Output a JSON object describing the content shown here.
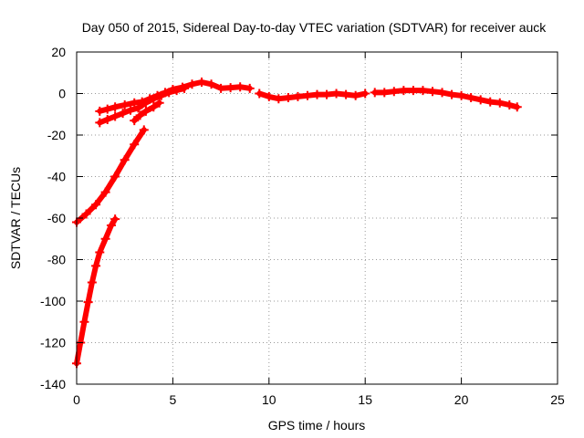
{
  "chart_data": {
    "type": "scatter",
    "title": "Day 050 of 2015, Sidereal Day-to-day VTEC variation (SDTVAR) for receiver auck",
    "xlabel": "GPS time / hours",
    "ylabel": "SDTVAR / TECUs",
    "xlim": [
      0,
      25
    ],
    "ylim": [
      -140,
      20
    ],
    "xticks": [
      0,
      5,
      10,
      15,
      20,
      25
    ],
    "yticks": [
      -140,
      -120,
      -100,
      -80,
      -60,
      -40,
      -20,
      0,
      20
    ],
    "grid": true,
    "legend": "none",
    "colors": {
      "series": "#ff0000",
      "grid": "#999999",
      "axis": "#000000"
    },
    "series": [
      {
        "name": "main-track",
        "points": [
          [
            1.2,
            -8.5
          ],
          [
            1.6,
            -7.5
          ],
          [
            2.0,
            -6.5
          ],
          [
            2.5,
            -5.5
          ],
          [
            3.0,
            -4.5
          ],
          [
            3.4,
            -4.0
          ],
          [
            3.8,
            -2.5
          ],
          [
            4.2,
            -1.0
          ],
          [
            4.6,
            0.5
          ],
          [
            5.0,
            2.0
          ],
          [
            5.5,
            3.0
          ],
          [
            6.0,
            4.5
          ],
          [
            6.5,
            5.5
          ],
          [
            7.0,
            4.5
          ],
          [
            7.5,
            2.5
          ],
          [
            8.0,
            2.8
          ],
          [
            8.5,
            3.2
          ],
          [
            9.0,
            2.5
          ]
        ]
      },
      {
        "name": "main-track-lower",
        "points": [
          [
            1.2,
            -14.0
          ],
          [
            1.6,
            -12.5
          ],
          [
            2.0,
            -11.0
          ],
          [
            2.4,
            -9.5
          ],
          [
            2.8,
            -8.0
          ],
          [
            3.2,
            -7.0
          ],
          [
            3.6,
            -4.5
          ],
          [
            4.0,
            -2.5
          ],
          [
            4.4,
            -1.0
          ],
          [
            4.8,
            0.5
          ],
          [
            5.2,
            1.5
          ],
          [
            5.6,
            2.5
          ]
        ]
      },
      {
        "name": "track-continuation",
        "points": [
          [
            9.5,
            0.0
          ],
          [
            10.0,
            -1.5
          ],
          [
            10.5,
            -2.5
          ],
          [
            11.0,
            -2.0
          ],
          [
            11.5,
            -1.5
          ],
          [
            12.0,
            -1.0
          ],
          [
            12.5,
            -0.5
          ],
          [
            13.0,
            -0.5
          ],
          [
            13.5,
            0.0
          ],
          [
            14.0,
            -0.5
          ],
          [
            14.5,
            -1.0
          ],
          [
            15.0,
            0.0
          ]
        ]
      },
      {
        "name": "track-late",
        "points": [
          [
            15.5,
            0.5
          ],
          [
            16.0,
            0.5
          ],
          [
            16.5,
            1.0
          ],
          [
            17.0,
            1.5
          ],
          [
            17.5,
            1.5
          ],
          [
            18.0,
            1.5
          ],
          [
            18.5,
            1.0
          ],
          [
            19.0,
            0.5
          ],
          [
            19.5,
            -0.5
          ],
          [
            20.0,
            -1.0
          ],
          [
            20.5,
            -2.0
          ],
          [
            21.0,
            -3.0
          ],
          [
            21.5,
            -4.0
          ],
          [
            22.0,
            -4.5
          ],
          [
            22.5,
            -5.5
          ],
          [
            22.9,
            -6.5
          ]
        ]
      },
      {
        "name": "short-arc",
        "points": [
          [
            3.0,
            -13.0
          ],
          [
            3.3,
            -10.5
          ],
          [
            3.6,
            -8.5
          ],
          [
            4.0,
            -6.5
          ],
          [
            4.3,
            -4.5
          ]
        ]
      },
      {
        "name": "rising-arc-1",
        "points": [
          [
            0.0,
            -62.0
          ],
          [
            0.5,
            -58.0
          ],
          [
            1.0,
            -53.5
          ],
          [
            1.5,
            -47.5
          ],
          [
            2.0,
            -40.0
          ],
          [
            2.5,
            -32.0
          ],
          [
            3.0,
            -24.5
          ],
          [
            3.5,
            -17.5
          ]
        ]
      },
      {
        "name": "rising-arc-2",
        "points": [
          [
            0.0,
            -130.0
          ],
          [
            0.2,
            -120.0
          ],
          [
            0.4,
            -110.0
          ],
          [
            0.6,
            -100.5
          ],
          [
            0.8,
            -91.0
          ],
          [
            1.0,
            -83.0
          ],
          [
            1.2,
            -76.5
          ],
          [
            1.5,
            -70.0
          ],
          [
            1.8,
            -63.5
          ],
          [
            2.0,
            -60.5
          ]
        ]
      }
    ]
  }
}
